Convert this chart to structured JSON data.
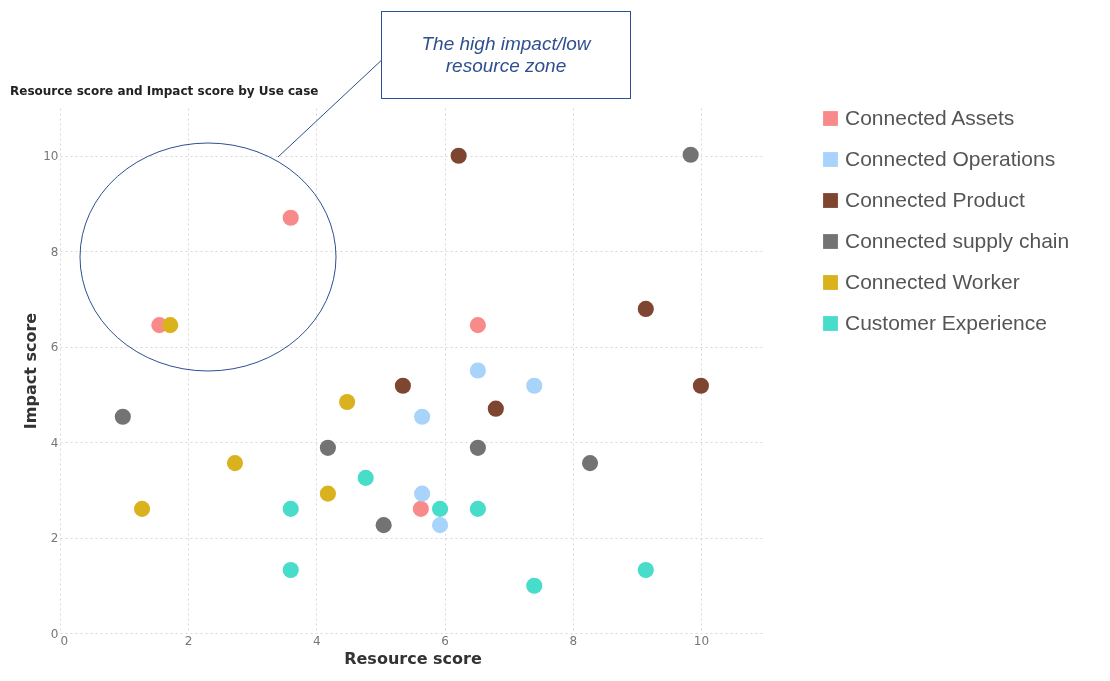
{
  "chart_data": {
    "type": "scatter",
    "title": "Resource score and Impact score by Use case",
    "xlabel": "Resource score",
    "ylabel": "Impact score",
    "xlim": [
      0,
      11
    ],
    "ylim": [
      0,
      11
    ],
    "xticks": [
      0,
      2,
      4,
      6,
      8,
      10
    ],
    "yticks": [
      0,
      2,
      4,
      6,
      8,
      10
    ],
    "grid": true,
    "legend": "right",
    "marker": "circle",
    "annotations": [
      "The high impact/low resource zone"
    ],
    "series": [
      {
        "name": "Connected Assets",
        "color": "#f98a8a",
        "x": [
          3.6,
          1.55,
          6.52,
          5.63
        ],
        "values": [
          8.7,
          6.45,
          6.45,
          2.6
        ]
      },
      {
        "name": "Connected Operations",
        "color": "#a8d3fa",
        "x": [
          6.52,
          5.65,
          7.4,
          5.65,
          5.93
        ],
        "values": [
          5.5,
          4.53,
          5.18,
          2.92,
          2.26
        ]
      },
      {
        "name": "Connected Product",
        "color": "#7e4530",
        "x": [
          6.22,
          9.14,
          5.35,
          6.8,
          10.0
        ],
        "values": [
          10.0,
          6.79,
          5.18,
          4.7,
          5.18
        ]
      },
      {
        "name": "Connected supply chain",
        "color": "#737373",
        "x": [
          9.84,
          0.98,
          4.18,
          6.52,
          8.27,
          5.05
        ],
        "values": [
          10.02,
          4.53,
          3.88,
          3.88,
          3.56,
          2.26
        ]
      },
      {
        "name": "Connected Worker",
        "color": "#d9b21e",
        "x": [
          1.72,
          4.48,
          2.73,
          4.18,
          1.28
        ],
        "values": [
          6.45,
          4.84,
          3.56,
          2.92,
          2.6
        ]
      },
      {
        "name": "Customer Experience",
        "color": "#48dccb",
        "x": [
          4.77,
          3.6,
          5.93,
          6.52,
          3.6,
          7.4,
          9.14
        ],
        "values": [
          3.25,
          2.6,
          2.6,
          2.6,
          1.32,
          0.99,
          1.32
        ]
      }
    ]
  }
}
